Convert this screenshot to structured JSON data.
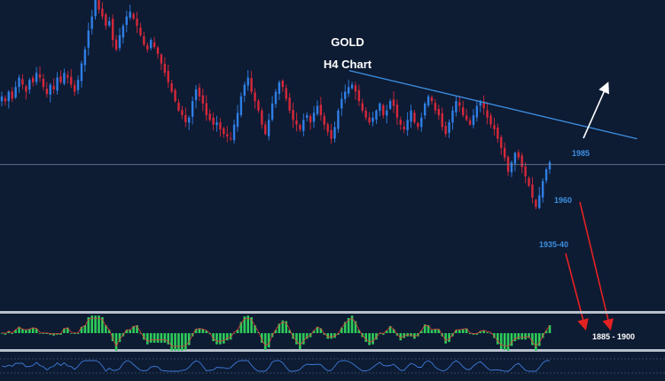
{
  "chart_data": {
    "type": "candlestick",
    "title": "GOLD",
    "subtitle": "H4 Chart",
    "timeframe": "H4",
    "ylim": [
      1875,
      2005
    ],
    "levels": [
      {
        "label": "1985",
        "value": 1985
      },
      {
        "label": "1960",
        "value": 1960
      },
      {
        "label": "1935-40",
        "value": 1937.5
      },
      {
        "label": "1885 - 1900",
        "value": 1892.5
      }
    ],
    "horizontal_line": 1935,
    "trendline": {
      "start": [
        0.525,
        1975.0
      ],
      "end": [
        0.958,
        1946.0
      ]
    },
    "closes": [
      1964,
      1962,
      1966,
      1963,
      1968,
      1972,
      1969,
      1966,
      1971,
      1970,
      1974,
      1972,
      1968,
      1965,
      1969,
      1967,
      1972,
      1970,
      1974,
      1972,
      1969,
      1966,
      1971,
      1978,
      1984,
      1992,
      1998,
      2006,
      2001,
      1998,
      1994,
      1996,
      1988,
      1984,
      1990,
      1994,
      1998,
      2000,
      1997,
      1994,
      1990,
      1986,
      1984,
      1988,
      1985,
      1982,
      1978,
      1974,
      1970,
      1966,
      1962,
      1958,
      1956,
      1953,
      1955,
      1962,
      1967,
      1964,
      1961,
      1956,
      1954,
      1952,
      1953,
      1950,
      1948,
      1947,
      1946,
      1952,
      1957,
      1964,
      1969,
      1972,
      1966,
      1962,
      1958,
      1952,
      1948,
      1954,
      1961,
      1966,
      1970,
      1968,
      1963,
      1958,
      1954,
      1952,
      1950,
      1954,
      1956,
      1953,
      1957,
      1960,
      1956,
      1952,
      1949,
      1946,
      1951,
      1958,
      1963,
      1966,
      1968,
      1969,
      1966,
      1962,
      1958,
      1955,
      1953,
      1955,
      1958,
      1961,
      1956,
      1958,
      1962,
      1960,
      1955,
      1952,
      1950,
      1954,
      1958,
      1953,
      1951,
      1955,
      1961,
      1964,
      1962,
      1958,
      1956,
      1951,
      1948,
      1953,
      1958,
      1962,
      1960,
      1956,
      1954,
      1952,
      1956,
      1960,
      1962,
      1959,
      1955,
      1952,
      1950,
      1946,
      1942,
      1938,
      1932,
      1936,
      1940,
      1938,
      1934,
      1930,
      1926,
      1921,
      1917,
      1922,
      1928,
      1933,
      1936
    ],
    "oscillator": {
      "histogram_range": [
        -1,
        1
      ],
      "signal_line": true
    },
    "lower_panel": {
      "type": "oscillator-line"
    }
  }
}
